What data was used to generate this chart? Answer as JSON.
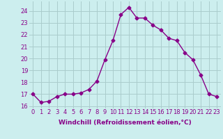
{
  "x": [
    0,
    1,
    2,
    3,
    4,
    5,
    6,
    7,
    8,
    9,
    10,
    11,
    12,
    13,
    14,
    15,
    16,
    17,
    18,
    19,
    20,
    21,
    22,
    23
  ],
  "y": [
    17.0,
    16.3,
    16.4,
    16.8,
    17.0,
    17.0,
    17.1,
    17.4,
    18.1,
    19.9,
    21.5,
    23.7,
    24.3,
    23.4,
    23.4,
    22.8,
    22.4,
    21.7,
    21.5,
    20.5,
    19.9,
    18.6,
    17.0,
    16.8
  ],
  "line_color": "#880088",
  "marker": "D",
  "markersize": 2.5,
  "linewidth": 1.0,
  "bg_color": "#cceeee",
  "grid_color": "#aacccc",
  "xlabel": "Windchill (Refroidissement éolien,°C)",
  "xlabel_color": "#880088",
  "xlabel_fontsize": 6.5,
  "tick_color": "#880088",
  "tick_fontsize": 6,
  "xlim": [
    -0.5,
    23.5
  ],
  "ylim": [
    15.8,
    24.8
  ],
  "yticks": [
    16,
    17,
    18,
    19,
    20,
    21,
    22,
    23,
    24
  ],
  "xticks": [
    0,
    1,
    2,
    3,
    4,
    5,
    6,
    7,
    8,
    9,
    10,
    11,
    12,
    13,
    14,
    15,
    16,
    17,
    18,
    19,
    20,
    21,
    22,
    23
  ]
}
